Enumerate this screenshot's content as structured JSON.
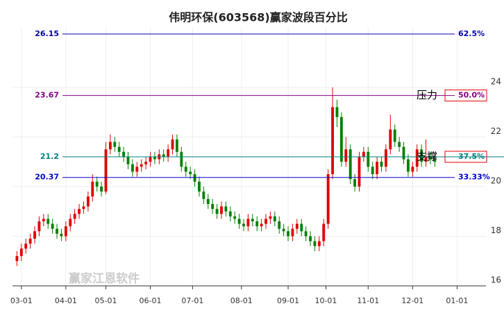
{
  "chart_data": {
    "type": "candlestick",
    "title": "伟明环保(603568)赢家波段百分比",
    "watermark": "赢家江恩软件",
    "x": [
      0,
      1,
      2,
      3,
      4,
      5,
      6,
      7,
      8,
      9,
      10,
      11,
      12,
      13,
      14,
      15,
      16,
      17,
      18,
      19,
      20,
      21,
      22,
      23,
      24,
      25,
      26,
      27,
      28,
      29,
      30,
      31,
      32,
      33,
      34,
      35,
      36,
      37,
      38,
      39,
      40,
      41,
      42,
      43,
      44,
      45,
      46,
      47,
      48,
      49,
      50,
      51,
      52,
      53,
      54,
      55,
      56,
      57,
      58,
      59,
      60,
      61,
      62,
      63,
      64,
      65,
      66,
      67,
      68,
      69,
      70,
      71,
      72,
      73,
      74,
      75,
      76,
      77,
      78,
      79,
      80,
      81,
      82,
      83,
      84,
      85,
      86,
      87,
      88,
      89,
      90,
      91,
      92,
      93,
      94
    ],
    "open": [
      17.0,
      17.2,
      17.5,
      17.7,
      17.9,
      18.2,
      18.6,
      18.7,
      18.5,
      18.3,
      18.1,
      18.0,
      18.4,
      18.7,
      18.9,
      19.1,
      19.2,
      19.6,
      20.2,
      20.0,
      19.8,
      21.5,
      21.8,
      21.6,
      21.4,
      21.2,
      20.9,
      20.6,
      20.8,
      20.9,
      21.0,
      21.2,
      21.1,
      21.3,
      21.2,
      21.5,
      21.9,
      21.4,
      20.8,
      20.6,
      20.5,
      20.2,
      19.8,
      19.5,
      19.3,
      19.1,
      18.9,
      19.2,
      19.0,
      18.8,
      18.7,
      18.5,
      18.4,
      18.7,
      18.6,
      18.4,
      18.5,
      18.7,
      18.8,
      18.6,
      18.3,
      18.2,
      18.0,
      18.3,
      18.5,
      18.2,
      18.0,
      17.8,
      17.6,
      17.8,
      18.5,
      20.5,
      23.2,
      22.8,
      21.0,
      21.5,
      20.3,
      20.0,
      21.2,
      21.4,
      20.8,
      20.5,
      21.0,
      20.8,
      21.5,
      22.3,
      21.8,
      21.6,
      21.1,
      20.6,
      20.8,
      21.5,
      21.0,
      21.2,
      21.1
    ],
    "high": [
      17.4,
      17.7,
      17.9,
      18.1,
      18.4,
      18.8,
      18.9,
      18.9,
      18.7,
      18.5,
      18.3,
      18.6,
      18.9,
      19.1,
      19.3,
      19.4,
      19.8,
      20.5,
      20.4,
      20.2,
      21.8,
      22.1,
      22.0,
      21.8,
      21.6,
      21.4,
      21.1,
      21.0,
      21.1,
      21.2,
      21.4,
      21.4,
      21.5,
      21.5,
      21.7,
      22.1,
      22.1,
      21.6,
      21.0,
      20.8,
      20.7,
      20.4,
      20.0,
      19.7,
      19.5,
      19.3,
      19.4,
      19.4,
      19.2,
      19.0,
      18.9,
      18.7,
      18.9,
      18.9,
      18.8,
      18.7,
      18.9,
      19.0,
      19.0,
      18.8,
      18.5,
      18.4,
      18.5,
      18.7,
      18.7,
      18.4,
      18.2,
      18.0,
      18.0,
      18.7,
      20.7,
      24.0,
      23.5,
      23.0,
      22.0,
      21.7,
      20.5,
      21.4,
      21.6,
      21.6,
      21.0,
      21.2,
      21.2,
      21.7,
      22.9,
      22.5,
      22.0,
      21.8,
      21.3,
      21.0,
      21.7,
      21.7,
      21.9,
      21.4,
      21.3
    ],
    "low": [
      16.8,
      17.0,
      17.3,
      17.5,
      17.7,
      18.0,
      18.4,
      18.3,
      18.1,
      17.9,
      17.8,
      17.8,
      18.2,
      18.5,
      18.7,
      18.9,
      19.0,
      19.4,
      19.8,
      19.6,
      19.7,
      21.3,
      21.4,
      21.2,
      21.0,
      20.7,
      20.4,
      20.4,
      20.6,
      20.7,
      20.8,
      20.9,
      20.9,
      21.0,
      21.0,
      21.3,
      21.2,
      20.6,
      20.4,
      20.3,
      20.0,
      19.6,
      19.3,
      19.1,
      18.9,
      18.7,
      18.7,
      18.8,
      18.6,
      18.5,
      18.3,
      18.2,
      18.2,
      18.4,
      18.2,
      18.2,
      18.3,
      18.5,
      18.4,
      18.1,
      18.0,
      17.8,
      17.8,
      18.1,
      18.0,
      17.8,
      17.6,
      17.4,
      17.4,
      17.6,
      18.3,
      20.3,
      22.4,
      20.8,
      20.8,
      20.1,
      19.8,
      19.8,
      21.0,
      20.6,
      20.3,
      20.3,
      20.6,
      20.6,
      21.3,
      21.6,
      21.4,
      20.9,
      20.4,
      20.4,
      20.6,
      20.8,
      20.8,
      20.9,
      20.8
    ],
    "close": [
      17.2,
      17.5,
      17.7,
      17.9,
      18.2,
      18.6,
      18.7,
      18.5,
      18.3,
      18.1,
      18.0,
      18.4,
      18.7,
      18.9,
      19.1,
      19.2,
      19.6,
      20.2,
      20.0,
      19.8,
      21.5,
      21.8,
      21.6,
      21.4,
      21.2,
      20.9,
      20.6,
      20.8,
      20.9,
      21.0,
      21.2,
      21.1,
      21.3,
      21.2,
      21.5,
      21.9,
      21.4,
      20.8,
      20.6,
      20.5,
      20.2,
      19.8,
      19.5,
      19.3,
      19.1,
      18.9,
      19.2,
      19.0,
      18.8,
      18.7,
      18.5,
      18.4,
      18.7,
      18.6,
      18.4,
      18.5,
      18.7,
      18.8,
      18.6,
      18.3,
      18.2,
      18.0,
      18.3,
      18.5,
      18.2,
      18.0,
      17.8,
      17.6,
      17.8,
      18.5,
      20.5,
      23.2,
      22.8,
      21.0,
      21.5,
      20.3,
      20.0,
      21.2,
      21.4,
      20.8,
      20.5,
      21.0,
      20.8,
      21.5,
      22.3,
      21.8,
      21.6,
      21.1,
      20.6,
      20.8,
      21.5,
      21.0,
      21.2,
      21.1,
      21.0
    ],
    "up_color": "#e00000",
    "down_color": "#008000",
    "xlim": [
      -1,
      105.5
    ],
    "xticks": [
      {
        "value": 1,
        "label": "03-01"
      },
      {
        "value": 11,
        "label": "04-01"
      },
      {
        "value": 20,
        "label": "05-01"
      },
      {
        "value": 30,
        "label": "06-01"
      },
      {
        "value": 39.5,
        "label": "07-01"
      },
      {
        "value": 50.5,
        "label": "08-01"
      },
      {
        "value": 61,
        "label": "09-01"
      },
      {
        "value": 69.5,
        "label": "10-01"
      },
      {
        "value": 79,
        "label": "11-01"
      },
      {
        "value": 89,
        "label": "12-01"
      },
      {
        "value": 99,
        "label": "01-01"
      }
    ],
    "ylim": [
      16,
      26.4
    ],
    "yticks": [
      16,
      18,
      20,
      22,
      24
    ],
    "grid": true,
    "levels": [
      {
        "value": 26.15,
        "label": "62.5%",
        "color": "#0000aa"
      },
      {
        "value": 23.67,
        "label": "50.0%",
        "color": "#800080",
        "boxed": true,
        "note": "压力"
      },
      {
        "value": 21.2,
        "label": "37.5%",
        "color": "#008080",
        "boxed": true,
        "note": "支撑"
      },
      {
        "value": 20.37,
        "label": "33.33%",
        "color": "#0000cc"
      }
    ]
  }
}
